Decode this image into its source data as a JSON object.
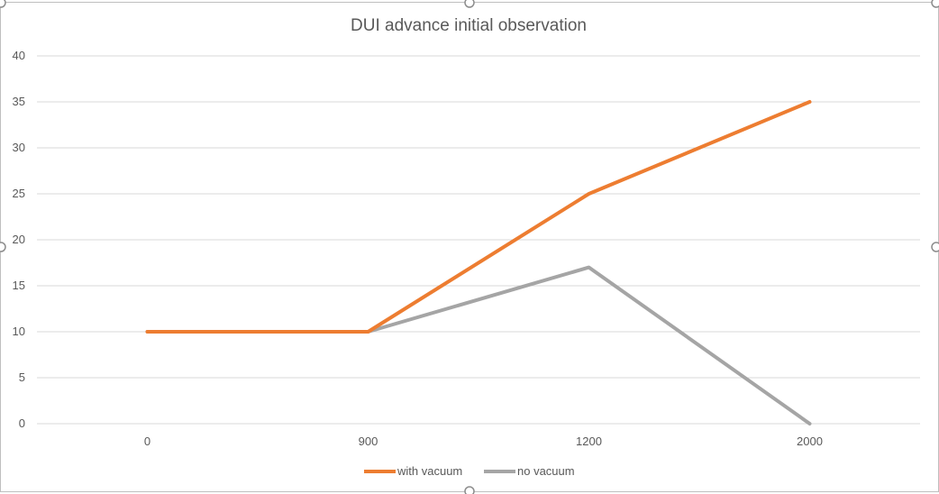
{
  "chart_data": {
    "type": "line",
    "title": "DUI advance initial observation",
    "xlabel": "",
    "ylabel": "",
    "categories": [
      "0",
      "900",
      "1200",
      "2000"
    ],
    "ylim": [
      0,
      40
    ],
    "yticks": [
      "0",
      "5",
      "10",
      "15",
      "20",
      "25",
      "30",
      "35",
      "40"
    ],
    "grid": true,
    "legend_position": "bottom",
    "series": [
      {
        "name": "with vacuum",
        "values": [
          10,
          10,
          25,
          35
        ],
        "color": "#ED7D31"
      },
      {
        "name": "no vacuum",
        "values": [
          10,
          10,
          17,
          0
        ],
        "color": "#A5A5A5"
      }
    ]
  },
  "colors": {
    "gridline": "#d9d9d9",
    "frame_border": "#bfbfbf",
    "handle": "#8c8c8c"
  }
}
